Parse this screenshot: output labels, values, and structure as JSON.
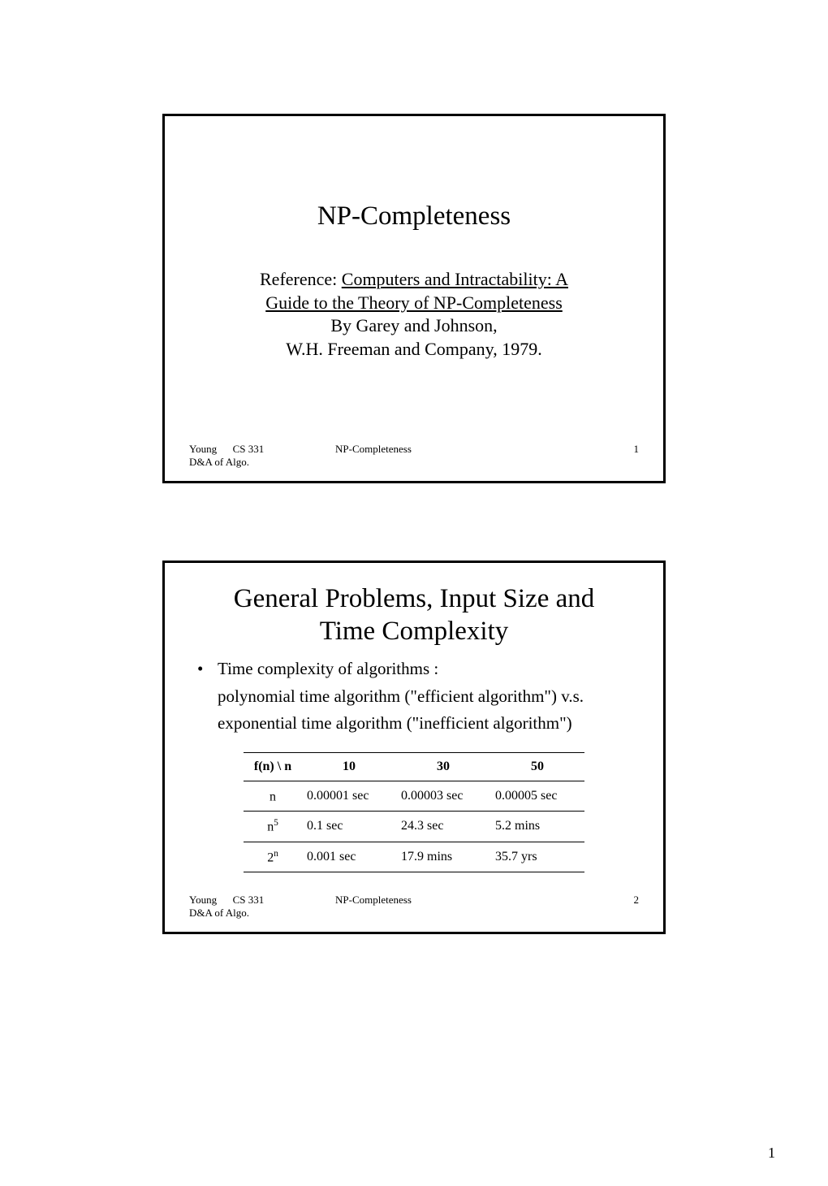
{
  "page": {
    "number": "1"
  },
  "slide1": {
    "title": "NP-Completeness",
    "ref_prefix": "Reference: ",
    "ref_underlined1": "Computers and Intractability: A",
    "ref_underlined2": "Guide to the Theory of NP-Completeness",
    "ref_by": "By Garey and Johnson,",
    "ref_pub": "W.H. Freeman and Company, 1979.",
    "footer": {
      "author": "Young",
      "course": "CS 331",
      "center": "NP-Completeness",
      "page": "1",
      "sub": "D&A of Algo."
    }
  },
  "slide2": {
    "title_line1": "General Problems, Input Size and",
    "title_line2": "Time Complexity",
    "bullet_mark": "•",
    "bullet1": "Time complexity of algorithms :",
    "bullet1_cont1": "polynomial time algorithm (\"efficient algorithm\") v.s.",
    "bullet1_cont2": "exponential time algorithm (\"inefficient algorithm\")",
    "table": {
      "header": [
        "f(n) \\ n",
        "10",
        "30",
        "50"
      ],
      "rows": [
        {
          "fn": "n",
          "sup": "",
          "c1": "0.00001 sec",
          "c2": "0.00003 sec",
          "c3": "0.00005 sec"
        },
        {
          "fn": "n",
          "sup": "5",
          "c1": "0.1 sec",
          "c2": "24.3 sec",
          "c3": "5.2 mins"
        },
        {
          "fn": "2",
          "sup": "n",
          "c1": "0.001 sec",
          "c2": "17.9 mins",
          "c3": "35.7 yrs"
        }
      ],
      "col_widths": [
        "60px",
        "120px",
        "120px",
        "120px"
      ],
      "border_color": "#000000",
      "font_size": 16
    },
    "footer": {
      "author": "Young",
      "course": "CS 331",
      "center": "NP-Completeness",
      "page": "2",
      "sub": "D&A of Algo."
    }
  }
}
